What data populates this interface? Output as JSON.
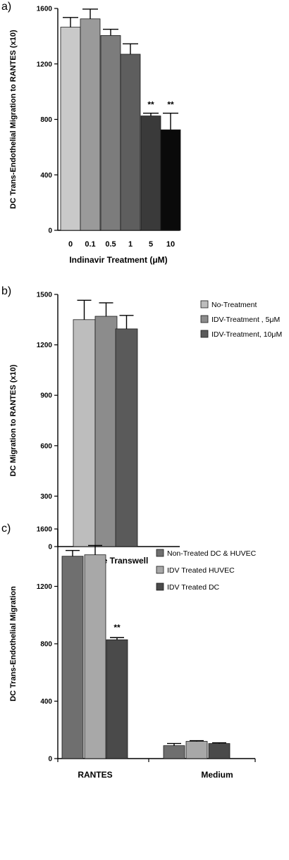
{
  "chart_data": [
    {
      "panel": "a)",
      "type": "bar",
      "ylabel": "DC Trans-Endothelial Migration to RANTES (x10)",
      "xlabel": "Indinavir Treatment (μM)",
      "categories": [
        "0",
        "0.1",
        "0.5",
        "1",
        "5",
        "10"
      ],
      "values": [
        1465,
        1525,
        1405,
        1270,
        825,
        725
      ],
      "errors": [
        70,
        70,
        45,
        75,
        20,
        120
      ],
      "annotations": [
        "",
        "",
        "",
        "",
        "**",
        "**"
      ],
      "colors": [
        "#c9c9c9",
        "#9a9a9a",
        "#7c7c7c",
        "#5e5e5e",
        "#3a3a3a",
        "#0a0a0a"
      ],
      "ylim": [
        0,
        1600
      ],
      "yticks": [
        "0",
        "400",
        "800",
        "1200",
        "1600"
      ],
      "ytick_values": [
        0,
        400,
        800,
        1200,
        1600
      ]
    },
    {
      "panel": "b)",
      "type": "bar",
      "ylabel": "DC Migration to RANTES (x10)",
      "xlabel": "Bare Transwell",
      "categories": [
        "Bare Transwell"
      ],
      "series": [
        {
          "name": "No-Treatment",
          "values": [
            1350
          ],
          "errors": [
            115
          ],
          "color": "#bdbdbd"
        },
        {
          "name": "IDV-Treatment , 5μM",
          "values": [
            1370
          ],
          "errors": [
            80
          ],
          "color": "#8c8c8c"
        },
        {
          "name": "IDV-Treatment, 10μM",
          "values": [
            1295
          ],
          "errors": [
            80
          ],
          "color": "#5a5a5a"
        }
      ],
      "ylim": [
        0,
        1500
      ],
      "yticks": [
        "0",
        "300",
        "600",
        "900",
        "1200",
        "1500"
      ],
      "ytick_values": [
        0,
        300,
        600,
        900,
        1200,
        1500
      ],
      "legend": "top-right"
    },
    {
      "panel": "c)",
      "type": "bar",
      "ylabel": "DC Trans-Endothelial Migration",
      "xlabel": "",
      "categories": [
        "RANTES",
        "Medium"
      ],
      "series": [
        {
          "name": "Non-Treated DC & HUVEC",
          "values": [
            1410,
            90
          ],
          "errors": [
            40,
            15
          ],
          "color": "#6f6f6f"
        },
        {
          "name": "IDV Treated HUVEC",
          "values": [
            1420,
            120
          ],
          "errors": [
            65,
            5
          ],
          "color": "#a8a8a8"
        },
        {
          "name": "IDV Treated DC",
          "values": [
            828,
            105
          ],
          "errors": [
            15,
            5
          ],
          "color": "#4a4a4a"
        }
      ],
      "annotations": [
        {
          "category": "RANTES",
          "series": "IDV Treated DC",
          "text": "**"
        }
      ],
      "ylim": [
        0,
        1600
      ],
      "yticks": [
        "0",
        "400",
        "800",
        "1200",
        "1600"
      ],
      "ytick_values": [
        0,
        400,
        800,
        1200,
        1600
      ],
      "legend": "top-right"
    }
  ]
}
